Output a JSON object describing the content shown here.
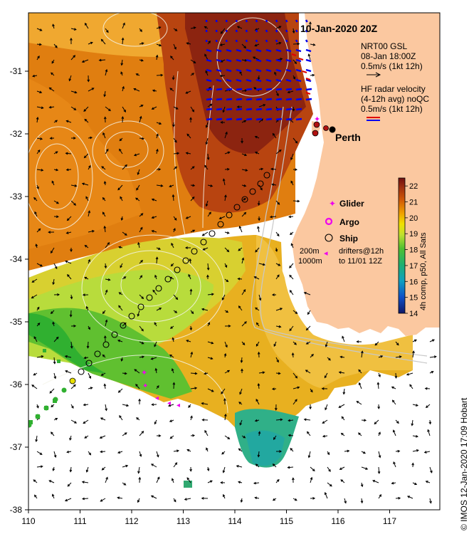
{
  "title": "10-Jan-2020 20Z",
  "city": "Perth",
  "legend": {
    "nrt_line1": "NRT00 GSL",
    "nrt_line2": "08-Jan 18:00Z",
    "nrt_line3": "0.5m/s (1kt 12h)",
    "hf_line1": "HF radar velocity",
    "hf_line2": "(4-12h avg) noQC",
    "hf_line3": "0.5m/s (1kt 12h)",
    "glider": "Glider",
    "argo": "Argo",
    "ship": "Ship",
    "depth_200": "200m",
    "depth_1000": "1000m",
    "drifters_line1": "drifters@12h",
    "drifters_line2": "to 11/01 12Z"
  },
  "colorbar": {
    "label": "4h comp, p50, All Sats",
    "min": 14,
    "max": 22.5,
    "ticks": [
      "14",
      "15",
      "16",
      "17",
      "18",
      "19",
      "20",
      "21",
      "22"
    ]
  },
  "axes": {
    "x_ticks": [
      "110",
      "111",
      "112",
      "113",
      "114",
      "115",
      "116",
      "117"
    ],
    "y_ticks": [
      "-31",
      "-32",
      "-33",
      "-34",
      "-35",
      "-36",
      "-37",
      "-38"
    ],
    "lon_range": [
      110,
      118
    ],
    "lat_range": [
      -38,
      -30.1
    ]
  },
  "credit": "© IMOS 12-Jan-2020 17:09 Hobart",
  "colors": {
    "land": "#fbc8a0",
    "sst_cold": "#1040a0",
    "sst_warm": "#7a1810",
    "radar": "#0000ee",
    "glider": "#ee00ee",
    "ship": "#000000"
  }
}
